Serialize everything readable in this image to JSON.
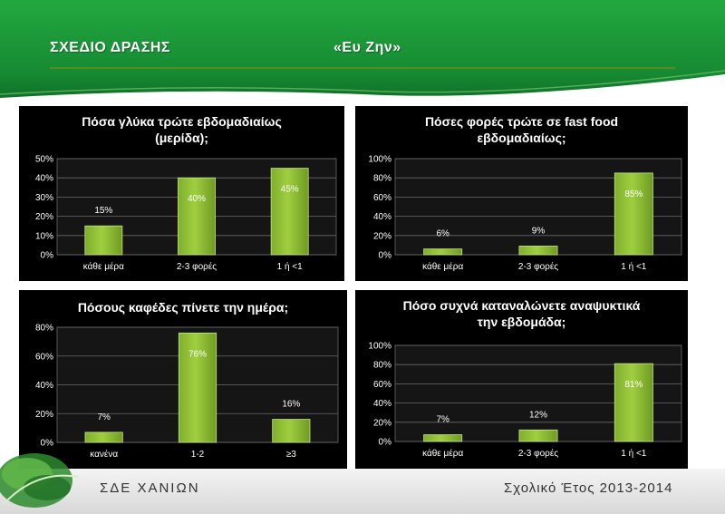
{
  "header": {
    "title_left": "ΣΧΕΔΙΟ ΔΡΑΣΗΣ",
    "title_right": "«Ευ Ζην»"
  },
  "footer": {
    "left": "ΣΔΕ ΧΑΝΙΩΝ",
    "right": "Σχολικό Έτος 2013-2014"
  },
  "colors": {
    "banner_green": "#1d9a3a",
    "bar_green": "#9fcf40",
    "panel_bg": "#000000",
    "plot_bg": "#151515"
  },
  "chart_data": [
    {
      "type": "bar",
      "title": "Πόσα γλύκα τρώτε εβδομαδιαίως\n(μερίδα);",
      "categories": [
        "κάθε μέρα",
        "2-3 φορές",
        "1 ή <1"
      ],
      "values": [
        15,
        40,
        45
      ],
      "data_labels": [
        "15%",
        "40%",
        "45%"
      ],
      "yticks": [
        "0%",
        "10%",
        "20%",
        "30%",
        "40%",
        "50%"
      ],
      "ylim": [
        0,
        50
      ],
      "ystep": 10,
      "grid": true
    },
    {
      "type": "bar",
      "title": "Πόσες φορές τρώτε σε fast food\nεβδομαδιαίως;",
      "categories": [
        "κάθε μέρα",
        "2-3 φορές",
        "1 ή <1"
      ],
      "values": [
        6,
        9,
        85
      ],
      "data_labels": [
        "6%",
        "9%",
        "85%"
      ],
      "yticks": [
        "0%",
        "20%",
        "40%",
        "60%",
        "80%",
        "100%"
      ],
      "ylim": [
        0,
        100
      ],
      "ystep": 20,
      "grid": true
    },
    {
      "type": "bar",
      "title": "Πόσους καφέδες πίνετε την ημέρα;",
      "categories": [
        "κανένα",
        "1-2",
        "≥3"
      ],
      "values": [
        7,
        76,
        16
      ],
      "data_labels": [
        "7%",
        "76%",
        "16%"
      ],
      "yticks": [
        "0%",
        "20%",
        "40%",
        "60%",
        "80%"
      ],
      "ylim": [
        0,
        80
      ],
      "ystep": 20,
      "grid": true
    },
    {
      "type": "bar",
      "title": "Πόσο συχνά καταναλώνετε αναψυκτικά\nτην εβδομάδα;",
      "categories": [
        "κάθε μέρα",
        "2-3 φορές",
        "1 ή <1"
      ],
      "values": [
        7,
        12,
        81
      ],
      "data_labels": [
        "7%",
        "12%",
        "81%"
      ],
      "yticks": [
        "0%",
        "20%",
        "40%",
        "60%",
        "80%",
        "100%"
      ],
      "ylim": [
        0,
        100
      ],
      "ystep": 20,
      "grid": true
    }
  ]
}
